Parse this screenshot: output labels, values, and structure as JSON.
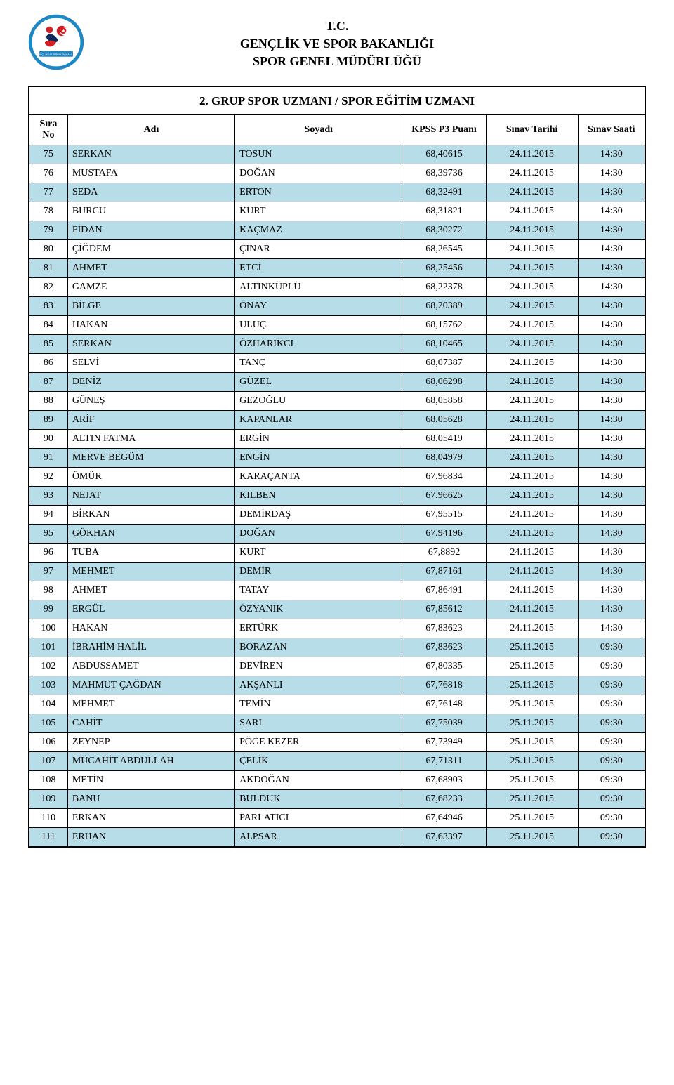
{
  "header": {
    "line1": "T.C.",
    "line2": "GENÇLİK VE SPOR BAKANLIĞI",
    "line3": "SPOR GENEL MÜDÜRLÜĞÜ",
    "group_title": "2. GRUP SPOR UZMANI  / SPOR EĞİTİM UZMANI",
    "logo_colors": {
      "ring": "#1e88c7",
      "red": "#d32027",
      "white": "#ffffff",
      "navy": "#0a2a5e"
    }
  },
  "table": {
    "columns": {
      "sira": "Sıra No",
      "adi": "Adı",
      "soyadi": "Soyadı",
      "puan": "KPSS P3 Puanı",
      "tarih": "Sınav Tarihi",
      "saat": "Sınav Saati"
    },
    "style": {
      "odd_row_color": "#b6dde8",
      "even_row_color": "#ffffff",
      "border_color": "#000000",
      "font_family": "Times New Roman",
      "header_fontsize": 14,
      "cell_fontsize": 14
    },
    "rows": [
      {
        "no": "75",
        "adi": "SERKAN",
        "soyadi": "TOSUN",
        "puan": "68,40615",
        "tarih": "24.11.2015",
        "saat": "14:30"
      },
      {
        "no": "76",
        "adi": "MUSTAFA",
        "soyadi": "DOĞAN",
        "puan": "68,39736",
        "tarih": "24.11.2015",
        "saat": "14:30"
      },
      {
        "no": "77",
        "adi": "SEDA",
        "soyadi": "ERTON",
        "puan": "68,32491",
        "tarih": "24.11.2015",
        "saat": "14:30"
      },
      {
        "no": "78",
        "adi": "BURCU",
        "soyadi": "KURT",
        "puan": "68,31821",
        "tarih": "24.11.2015",
        "saat": "14:30"
      },
      {
        "no": "79",
        "adi": "FİDAN",
        "soyadi": "KAÇMAZ",
        "puan": "68,30272",
        "tarih": "24.11.2015",
        "saat": "14:30"
      },
      {
        "no": "80",
        "adi": "ÇİĞDEM",
        "soyadi": "ÇINAR",
        "puan": "68,26545",
        "tarih": "24.11.2015",
        "saat": "14:30"
      },
      {
        "no": "81",
        "adi": "AHMET",
        "soyadi": "ETCİ",
        "puan": "68,25456",
        "tarih": "24.11.2015",
        "saat": "14:30"
      },
      {
        "no": "82",
        "adi": "GAMZE",
        "soyadi": "ALTINKÜPLÜ",
        "puan": "68,22378",
        "tarih": "24.11.2015",
        "saat": "14:30"
      },
      {
        "no": "83",
        "adi": "BİLGE",
        "soyadi": "ÖNAY",
        "puan": "68,20389",
        "tarih": "24.11.2015",
        "saat": "14:30"
      },
      {
        "no": "84",
        "adi": "HAKAN",
        "soyadi": "ULUÇ",
        "puan": "68,15762",
        "tarih": "24.11.2015",
        "saat": "14:30"
      },
      {
        "no": "85",
        "adi": "SERKAN",
        "soyadi": "ÖZHARIKCI",
        "puan": "68,10465",
        "tarih": "24.11.2015",
        "saat": "14:30"
      },
      {
        "no": "86",
        "adi": "SELVİ",
        "soyadi": "TANÇ",
        "puan": "68,07387",
        "tarih": "24.11.2015",
        "saat": "14:30"
      },
      {
        "no": "87",
        "adi": "DENİZ",
        "soyadi": "GÜZEL",
        "puan": "68,06298",
        "tarih": "24.11.2015",
        "saat": "14:30"
      },
      {
        "no": "88",
        "adi": "GÜNEŞ",
        "soyadi": "GEZOĞLU",
        "puan": "68,05858",
        "tarih": "24.11.2015",
        "saat": "14:30"
      },
      {
        "no": "89",
        "adi": "ARİF",
        "soyadi": "KAPANLAR",
        "puan": "68,05628",
        "tarih": "24.11.2015",
        "saat": "14:30"
      },
      {
        "no": "90",
        "adi": "ALTIN FATMA",
        "soyadi": "ERGİN",
        "puan": "68,05419",
        "tarih": "24.11.2015",
        "saat": "14:30"
      },
      {
        "no": "91",
        "adi": "MERVE BEGÜM",
        "soyadi": "ENGİN",
        "puan": "68,04979",
        "tarih": "24.11.2015",
        "saat": "14:30"
      },
      {
        "no": "92",
        "adi": "ÖMÜR",
        "soyadi": "KARAÇANTA",
        "puan": "67,96834",
        "tarih": "24.11.2015",
        "saat": "14:30"
      },
      {
        "no": "93",
        "adi": "NEJAT",
        "soyadi": "KILBEN",
        "puan": "67,96625",
        "tarih": "24.11.2015",
        "saat": "14:30"
      },
      {
        "no": "94",
        "adi": "BİRKAN",
        "soyadi": "DEMİRDAŞ",
        "puan": "67,95515",
        "tarih": "24.11.2015",
        "saat": "14:30"
      },
      {
        "no": "95",
        "adi": "GÖKHAN",
        "soyadi": "DOĞAN",
        "puan": "67,94196",
        "tarih": "24.11.2015",
        "saat": "14:30"
      },
      {
        "no": "96",
        "adi": "TUBA",
        "soyadi": "KURT",
        "puan": "67,8892",
        "tarih": "24.11.2015",
        "saat": "14:30"
      },
      {
        "no": "97",
        "adi": "MEHMET",
        "soyadi": "DEMİR",
        "puan": "67,87161",
        "tarih": "24.11.2015",
        "saat": "14:30"
      },
      {
        "no": "98",
        "adi": "AHMET",
        "soyadi": "TATAY",
        "puan": "67,86491",
        "tarih": "24.11.2015",
        "saat": "14:30"
      },
      {
        "no": "99",
        "adi": "ERGÜL",
        "soyadi": "ÖZYANIK",
        "puan": "67,85612",
        "tarih": "24.11.2015",
        "saat": "14:30"
      },
      {
        "no": "100",
        "adi": "HAKAN",
        "soyadi": "ERTÜRK",
        "puan": "67,83623",
        "tarih": "24.11.2015",
        "saat": "14:30"
      },
      {
        "no": "101",
        "adi": "İBRAHİM HALİL",
        "soyadi": "BORAZAN",
        "puan": "67,83623",
        "tarih": "25.11.2015",
        "saat": "09:30"
      },
      {
        "no": "102",
        "adi": "ABDUSSAMET",
        "soyadi": "DEVİREN",
        "puan": "67,80335",
        "tarih": "25.11.2015",
        "saat": "09:30"
      },
      {
        "no": "103",
        "adi": "MAHMUT ÇAĞDAN",
        "soyadi": "AKŞANLI",
        "puan": "67,76818",
        "tarih": "25.11.2015",
        "saat": "09:30"
      },
      {
        "no": "104",
        "adi": "MEHMET",
        "soyadi": "TEMİN",
        "puan": "67,76148",
        "tarih": "25.11.2015",
        "saat": "09:30"
      },
      {
        "no": "105",
        "adi": "CAHİT",
        "soyadi": "SARI",
        "puan": "67,75039",
        "tarih": "25.11.2015",
        "saat": "09:30"
      },
      {
        "no": "106",
        "adi": "ZEYNEP",
        "soyadi": "PÖGE KEZER",
        "puan": "67,73949",
        "tarih": "25.11.2015",
        "saat": "09:30"
      },
      {
        "no": "107",
        "adi": "MÜCAHİT ABDULLAH",
        "soyadi": "ÇELİK",
        "puan": "67,71311",
        "tarih": "25.11.2015",
        "saat": "09:30"
      },
      {
        "no": "108",
        "adi": "METİN",
        "soyadi": "AKDOĞAN",
        "puan": "67,68903",
        "tarih": "25.11.2015",
        "saat": "09:30"
      },
      {
        "no": "109",
        "adi": "BANU",
        "soyadi": "BULDUK",
        "puan": "67,68233",
        "tarih": "25.11.2015",
        "saat": "09:30"
      },
      {
        "no": "110",
        "adi": "ERKAN",
        "soyadi": "PARLATICI",
        "puan": "67,64946",
        "tarih": "25.11.2015",
        "saat": "09:30"
      },
      {
        "no": "111",
        "adi": "ERHAN",
        "soyadi": "ALPSAR",
        "puan": "67,63397",
        "tarih": "25.11.2015",
        "saat": "09:30"
      }
    ]
  }
}
